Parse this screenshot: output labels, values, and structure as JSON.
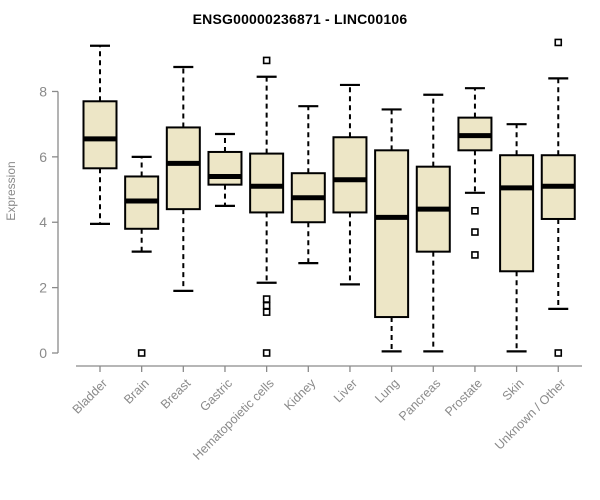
{
  "figure": {
    "title": "ENSG00000236871 - LINC00106",
    "ylabel": "Expression"
  },
  "colors": {
    "box_fill": "#ede6c6",
    "box_stroke": "#000000",
    "axis": "#8a8a8a",
    "tick_label": "#8a8a8a",
    "title": "#000000",
    "background": "#ffffff"
  },
  "chart_data": {
    "type": "boxplot",
    "title": "ENSG00000236871 - LINC00106",
    "xlabel": "",
    "ylabel": "Expression",
    "ylim": [
      0,
      9.6
    ],
    "yticks": [
      0,
      2,
      4,
      6,
      8
    ],
    "grid": false,
    "legend": false,
    "whisker_style": "dashed",
    "outlier_marker": "open-square",
    "categories": [
      "Bladder",
      "Brain",
      "Breast",
      "Gastric",
      "Hematopoietic cells",
      "Kidney",
      "Liver",
      "Lung",
      "Pancreas",
      "Prostate",
      "Skin",
      "Unknown / Other"
    ],
    "series": [
      {
        "name": "Bladder",
        "whisker_low": 3.95,
        "q1": 5.65,
        "median": 6.55,
        "q3": 7.7,
        "whisker_high": 9.4,
        "outliers": []
      },
      {
        "name": "Brain",
        "whisker_low": 3.1,
        "q1": 3.8,
        "median": 4.65,
        "q3": 5.4,
        "whisker_high": 6.0,
        "outliers": [
          0
        ]
      },
      {
        "name": "Breast",
        "whisker_low": 1.9,
        "q1": 4.4,
        "median": 5.8,
        "q3": 6.9,
        "whisker_high": 8.75,
        "outliers": []
      },
      {
        "name": "Gastric",
        "whisker_low": 4.5,
        "q1": 5.15,
        "median": 5.4,
        "q3": 6.15,
        "whisker_high": 6.7,
        "outliers": []
      },
      {
        "name": "Hematopoietic cells",
        "whisker_low": 2.15,
        "q1": 4.3,
        "median": 5.1,
        "q3": 6.1,
        "whisker_high": 8.45,
        "outliers": [
          8.95,
          1.65,
          1.45,
          1.25,
          0
        ]
      },
      {
        "name": "Kidney",
        "whisker_low": 2.75,
        "q1": 4.0,
        "median": 4.75,
        "q3": 5.5,
        "whisker_high": 7.55,
        "outliers": []
      },
      {
        "name": "Liver",
        "whisker_low": 2.1,
        "q1": 4.3,
        "median": 5.3,
        "q3": 6.6,
        "whisker_high": 8.2,
        "outliers": []
      },
      {
        "name": "Lung",
        "whisker_low": 0.05,
        "q1": 1.1,
        "median": 4.15,
        "q3": 6.2,
        "whisker_high": 7.45,
        "outliers": []
      },
      {
        "name": "Pancreas",
        "whisker_low": 0.05,
        "q1": 3.1,
        "median": 4.4,
        "q3": 5.7,
        "whisker_high": 7.9,
        "outliers": []
      },
      {
        "name": "Prostate",
        "whisker_low": 4.9,
        "q1": 6.2,
        "median": 6.65,
        "q3": 7.2,
        "whisker_high": 8.1,
        "outliers": [
          4.35,
          3.7,
          3.0
        ]
      },
      {
        "name": "Skin",
        "whisker_low": 0.05,
        "q1": 2.5,
        "median": 5.05,
        "q3": 6.05,
        "whisker_high": 7.0,
        "outliers": []
      },
      {
        "name": "Unknown / Other",
        "whisker_low": 1.35,
        "q1": 4.1,
        "median": 5.1,
        "q3": 6.05,
        "whisker_high": 8.4,
        "outliers": [
          9.5,
          0
        ]
      }
    ]
  }
}
